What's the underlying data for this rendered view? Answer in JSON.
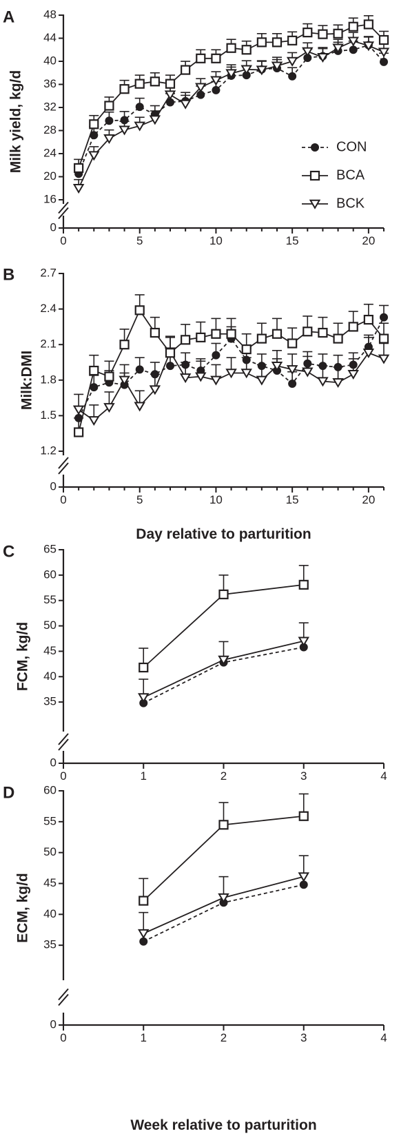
{
  "legend": [
    {
      "name": "CON",
      "marker": "circle",
      "line": "dashed"
    },
    {
      "name": "BCA",
      "marker": "square",
      "line": "solid"
    },
    {
      "name": "BCK",
      "marker": "triangle-down",
      "line": "solid"
    }
  ],
  "colors": {
    "ink": "#231f20",
    "background": "#ffffff"
  },
  "chart_data": [
    {
      "panel": "A",
      "type": "line",
      "xlabel": "",
      "ylabel": "Milk yield, kg/d",
      "xlim": [
        0,
        21
      ],
      "ylim": [
        16,
        48
      ],
      "axis_break": true,
      "xticks": [
        0,
        5,
        10,
        15,
        20
      ],
      "yticks": [
        16,
        20,
        24,
        28,
        32,
        36,
        40,
        44,
        48
      ],
      "x": [
        1,
        2,
        3,
        4,
        5,
        6,
        7,
        8,
        9,
        10,
        11,
        12,
        13,
        14,
        15,
        16,
        17,
        18,
        19,
        20,
        21
      ],
      "series": [
        {
          "name": "CON",
          "values": [
            20.5,
            27.2,
            29.7,
            29.8,
            32.1,
            30.8,
            32.9,
            33.1,
            34.2,
            35.0,
            37.5,
            37.6,
            38.6,
            38.8,
            37.4,
            40.6,
            40.9,
            41.8,
            42.0,
            42.8,
            39.9
          ],
          "errors": [
            1.2,
            1.5,
            1.5,
            1.5,
            1.5,
            1.5,
            1.5,
            1.5,
            1.5,
            1.5,
            1.5,
            1.5,
            1.5,
            1.5,
            1.5,
            1.5,
            1.5,
            1.5,
            1.5,
            1.5,
            1.5
          ]
        },
        {
          "name": "BCA",
          "values": [
            21.5,
            29.1,
            32.3,
            35.2,
            36.1,
            36.5,
            36.1,
            38.5,
            40.5,
            40.5,
            42.3,
            42.0,
            43.3,
            43.3,
            43.6,
            45.0,
            44.7,
            44.8,
            46.0,
            46.4,
            43.7
          ],
          "errors": [
            1.5,
            1.5,
            1.5,
            1.5,
            1.5,
            1.5,
            1.5,
            1.5,
            1.5,
            1.5,
            1.5,
            1.5,
            1.5,
            1.5,
            1.5,
            1.5,
            1.5,
            1.5,
            1.5,
            1.5,
            1.5
          ]
        },
        {
          "name": "BCK",
          "values": [
            18.0,
            23.7,
            26.6,
            28.1,
            28.8,
            29.9,
            34.2,
            32.6,
            35.5,
            36.7,
            37.9,
            38.6,
            38.5,
            39.2,
            40.0,
            41.7,
            40.7,
            42.3,
            43.5,
            42.7,
            41.6
          ],
          "errors": [
            1.5,
            1.5,
            1.5,
            1.5,
            1.5,
            1.5,
            1.5,
            1.5,
            1.5,
            1.5,
            1.5,
            1.5,
            1.5,
            1.5,
            1.5,
            1.5,
            1.5,
            1.5,
            1.5,
            1.5,
            1.5
          ]
        }
      ]
    },
    {
      "panel": "B",
      "type": "line",
      "xlabel": "Day relative to parturition",
      "ylabel": "Milk:DMI",
      "xlim": [
        0,
        21
      ],
      "ylim": [
        1.2,
        2.7
      ],
      "axis_break": true,
      "xticks": [
        0,
        5,
        10,
        15,
        20
      ],
      "yticks": [
        1.2,
        1.5,
        1.8,
        2.1,
        2.4,
        2.7
      ],
      "x": [
        1,
        2,
        3,
        4,
        5,
        6,
        7,
        8,
        9,
        10,
        11,
        12,
        13,
        14,
        15,
        16,
        17,
        18,
        19,
        20,
        21
      ],
      "series": [
        {
          "name": "CON",
          "values": [
            1.48,
            1.74,
            1.78,
            1.76,
            1.89,
            1.85,
            1.92,
            1.93,
            1.88,
            2.01,
            2.15,
            1.97,
            1.92,
            1.88,
            1.77,
            1.94,
            1.92,
            1.91,
            1.93,
            2.08,
            2.33
          ],
          "errors": [
            0.1,
            0.1,
            0.1,
            0.1,
            0.1,
            0.1,
            0.1,
            0.1,
            0.1,
            0.1,
            0.1,
            0.1,
            0.1,
            0.1,
            0.1,
            0.1,
            0.1,
            0.1,
            0.1,
            0.1,
            0.1
          ]
        },
        {
          "name": "BCA",
          "values": [
            1.36,
            1.88,
            1.83,
            2.1,
            2.39,
            2.2,
            2.03,
            2.14,
            2.16,
            2.19,
            2.19,
            2.06,
            2.15,
            2.19,
            2.11,
            2.21,
            2.2,
            2.15,
            2.25,
            2.31,
            2.15
          ],
          "errors": [
            0.12,
            0.13,
            0.13,
            0.13,
            0.13,
            0.13,
            0.13,
            0.13,
            0.13,
            0.13,
            0.13,
            0.13,
            0.13,
            0.13,
            0.13,
            0.13,
            0.13,
            0.13,
            0.13,
            0.13,
            0.13
          ]
        },
        {
          "name": "BCK",
          "values": [
            1.55,
            1.46,
            1.57,
            1.8,
            1.58,
            1.72,
            2.04,
            1.82,
            1.83,
            1.8,
            1.86,
            1.86,
            1.8,
            1.92,
            1.89,
            1.87,
            1.79,
            1.78,
            1.85,
            2.03,
            1.98
          ],
          "errors": [
            0.13,
            0.13,
            0.13,
            0.13,
            0.13,
            0.13,
            0.13,
            0.13,
            0.13,
            0.13,
            0.13,
            0.13,
            0.13,
            0.13,
            0.13,
            0.13,
            0.13,
            0.13,
            0.13,
            0.13,
            0.13
          ]
        }
      ]
    },
    {
      "panel": "C",
      "type": "line",
      "xlabel": "",
      "ylabel": "FCM, kg/d",
      "xlim": [
        0,
        4
      ],
      "ylim": [
        30,
        65
      ],
      "axis_break": true,
      "xticks": [
        0,
        1,
        2,
        3,
        4
      ],
      "yticks": [
        35,
        40,
        45,
        50,
        55,
        60,
        65
      ],
      "x": [
        1,
        2,
        3
      ],
      "series": [
        {
          "name": "CON",
          "values": [
            34.8,
            42.8,
            45.8
          ],
          "errors": [
            0,
            0,
            0
          ]
        },
        {
          "name": "BCA",
          "values": [
            41.8,
            56.2,
            58.1
          ],
          "errors": [
            3.8,
            3.8,
            3.8
          ]
        },
        {
          "name": "BCK",
          "values": [
            35.9,
            43.3,
            47.0
          ],
          "errors": [
            3.6,
            3.6,
            3.6
          ]
        }
      ]
    },
    {
      "panel": "D",
      "type": "line",
      "xlabel": "Week relative to parturition",
      "ylabel": "ECM, kg/d",
      "xlim": [
        0,
        4
      ],
      "ylim": [
        30,
        60
      ],
      "axis_break": true,
      "xticks": [
        0,
        1,
        2,
        3,
        4
      ],
      "yticks": [
        35,
        40,
        45,
        50,
        55,
        60
      ],
      "x": [
        1,
        2,
        3
      ],
      "series": [
        {
          "name": "CON",
          "values": [
            35.6,
            41.9,
            44.8
          ],
          "errors": [
            0,
            0,
            0
          ]
        },
        {
          "name": "BCA",
          "values": [
            42.2,
            54.5,
            55.9
          ],
          "errors": [
            3.6,
            3.6,
            3.6
          ]
        },
        {
          "name": "BCK",
          "values": [
            36.9,
            42.7,
            46.1
          ],
          "errors": [
            3.4,
            3.4,
            3.4
          ]
        }
      ]
    }
  ]
}
